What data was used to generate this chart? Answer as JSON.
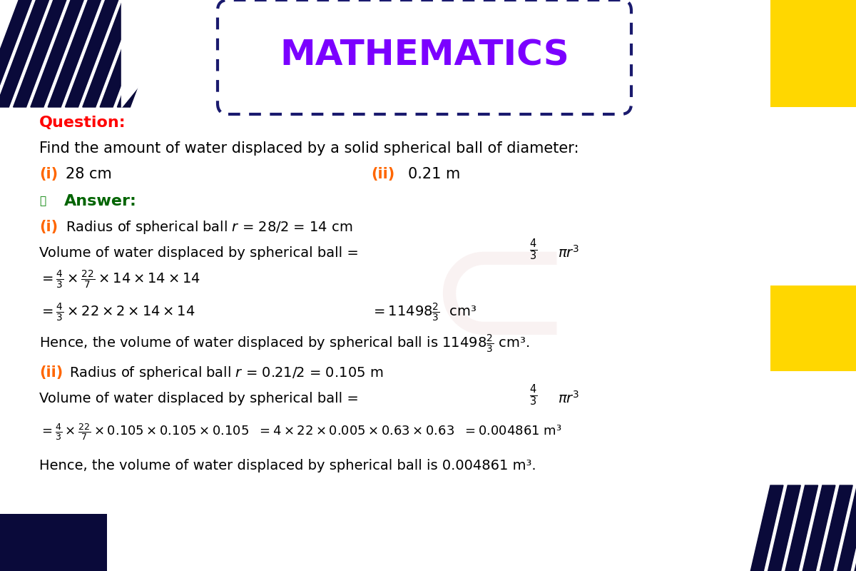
{
  "title": "MATHEMATICS",
  "title_color": "#7B00FF",
  "title_bg_color": "#ffffff",
  "title_border_color": "#1a1a6e",
  "bg_color": "#ffffff",
  "question_label": "Question:",
  "question_color": "#FF0000",
  "question_text": "Find the amount of water displaced by a solid spherical ball of diameter:",
  "answer_label": "Answer:",
  "answer_color": "#006400",
  "orange_color": "#FF6600",
  "black_color": "#000000",
  "dark_navy": "#0a0a3a",
  "gold_color": "#FFD700",
  "stripe_color": "#1a1a6e"
}
